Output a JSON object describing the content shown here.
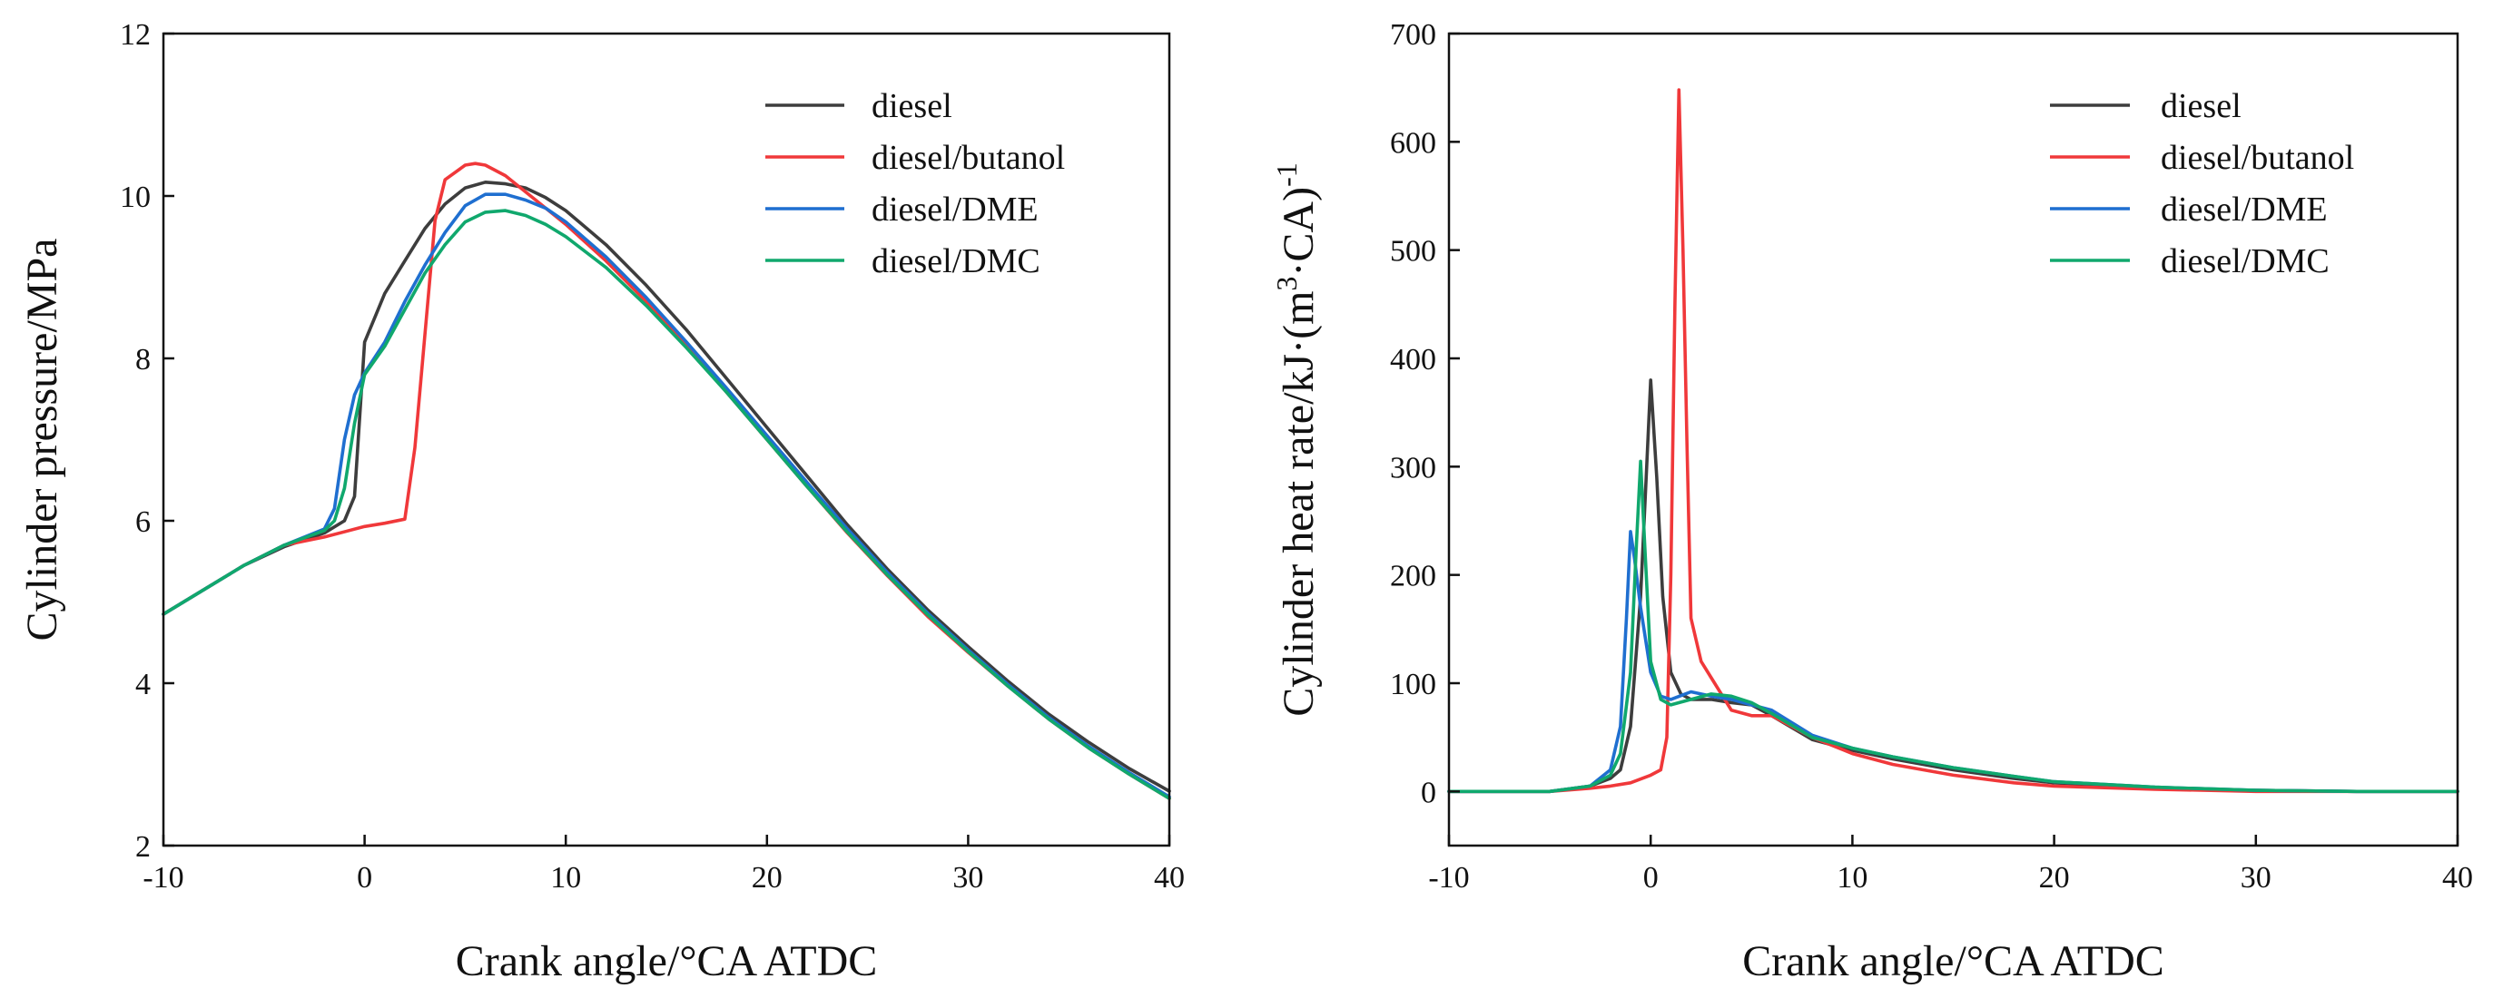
{
  "chart_data": [
    {
      "type": "line",
      "title": "",
      "xlabel": "Crank angle/°CA ATDC",
      "ylabel": "Cylinder pressure/MPa",
      "xlim": [
        -10,
        40
      ],
      "ylim": [
        2,
        12
      ],
      "xticks": [
        -10,
        0,
        10,
        20,
        30,
        40
      ],
      "yticks": [
        2,
        4,
        6,
        8,
        10,
        12
      ],
      "legend_position": "top-right",
      "series": [
        {
          "name": "diesel",
          "color": "#3d3d3d",
          "x": [
            -10,
            -8,
            -6,
            -4,
            -2,
            -1,
            -0.5,
            0,
            0.5,
            1,
            2,
            3,
            4,
            5,
            6,
            7,
            8,
            9,
            10,
            12,
            14,
            16,
            18,
            20,
            22,
            24,
            26,
            28,
            30,
            32,
            34,
            36,
            38,
            40
          ],
          "y": [
            4.85,
            5.15,
            5.45,
            5.68,
            5.85,
            6.0,
            6.3,
            8.2,
            8.5,
            8.8,
            9.2,
            9.6,
            9.9,
            10.1,
            10.17,
            10.15,
            10.1,
            9.98,
            9.82,
            9.4,
            8.9,
            8.35,
            7.75,
            7.15,
            6.55,
            5.95,
            5.4,
            4.9,
            4.45,
            4.02,
            3.62,
            3.27,
            2.95,
            2.67
          ]
        },
        {
          "name": "diesel/butanol",
          "color": "#f0383a",
          "x": [
            -10,
            -8,
            -6,
            -4,
            -2,
            0,
            1,
            2,
            2.5,
            3,
            3.5,
            4,
            5,
            5.5,
            6,
            7,
            8,
            9,
            10,
            12,
            14,
            16,
            18,
            20,
            22,
            24,
            26,
            28,
            30,
            32,
            34,
            36,
            38,
            40
          ],
          "y": [
            4.85,
            5.15,
            5.45,
            5.7,
            5.8,
            5.93,
            5.97,
            6.02,
            6.9,
            8.3,
            9.7,
            10.2,
            10.38,
            10.4,
            10.38,
            10.25,
            10.05,
            9.85,
            9.65,
            9.2,
            8.7,
            8.15,
            7.58,
            7.0,
            6.42,
            5.85,
            5.32,
            4.82,
            4.38,
            3.96,
            3.56,
            3.2,
            2.88,
            2.58
          ]
        },
        {
          "name": "diesel/DME",
          "color": "#1f6fd0",
          "x": [
            -10,
            -8,
            -6,
            -4,
            -2,
            -1.5,
            -1,
            -0.5,
            0,
            1,
            2,
            3,
            4,
            5,
            6,
            7,
            8,
            9,
            10,
            12,
            14,
            16,
            18,
            20,
            22,
            24,
            26,
            28,
            30,
            32,
            34,
            36,
            38,
            40
          ],
          "y": [
            4.85,
            5.15,
            5.45,
            5.7,
            5.9,
            6.15,
            7.0,
            7.55,
            7.82,
            8.2,
            8.7,
            9.15,
            9.55,
            9.88,
            10.02,
            10.02,
            9.95,
            9.85,
            9.68,
            9.25,
            8.75,
            8.2,
            7.63,
            7.05,
            6.47,
            5.9,
            5.36,
            4.86,
            4.41,
            3.98,
            3.58,
            3.22,
            2.9,
            2.6
          ]
        },
        {
          "name": "diesel/DMC",
          "color": "#10a86d",
          "x": [
            -10,
            -8,
            -6,
            -4,
            -2,
            -1.5,
            -1,
            -0.5,
            0,
            1,
            2,
            3,
            4,
            5,
            6,
            7,
            8,
            9,
            10,
            12,
            14,
            16,
            18,
            20,
            22,
            24,
            26,
            28,
            30,
            32,
            34,
            36,
            38,
            40
          ],
          "y": [
            4.85,
            5.15,
            5.45,
            5.7,
            5.88,
            6.0,
            6.4,
            7.2,
            7.8,
            8.15,
            8.6,
            9.05,
            9.4,
            9.68,
            9.8,
            9.82,
            9.76,
            9.65,
            9.5,
            9.12,
            8.65,
            8.13,
            7.58,
            7.0,
            6.42,
            5.86,
            5.33,
            4.84,
            4.39,
            3.96,
            3.56,
            3.2,
            2.88,
            2.58
          ]
        }
      ]
    },
    {
      "type": "line",
      "title": "",
      "xlabel": "Crank angle/°CA ATDC",
      "ylabel_main": "Cylinder heat rate/kJ·(m",
      "ylabel_sup1": "3",
      "ylabel_mid": "·CA)",
      "ylabel_sup2": "-1",
      "xlim": [
        -10,
        40
      ],
      "ylim": [
        -50,
        700
      ],
      "xticks": [
        -10,
        0,
        10,
        20,
        30,
        40
      ],
      "yticks": [
        0,
        100,
        200,
        300,
        400,
        500,
        600,
        700
      ],
      "legend_position": "top-right",
      "series": [
        {
          "name": "diesel",
          "color": "#3d3d3d",
          "x": [
            -10,
            -5,
            -3,
            -2,
            -1.5,
            -1,
            -0.5,
            -0.2,
            0,
            0.3,
            0.6,
            1,
            1.5,
            2,
            3,
            4,
            5,
            6,
            8,
            10,
            12,
            15,
            18,
            20,
            25,
            30,
            35,
            40
          ],
          "y": [
            0,
            0,
            5,
            12,
            20,
            60,
            180,
            300,
            380,
            290,
            180,
            110,
            90,
            85,
            85,
            82,
            80,
            70,
            48,
            38,
            30,
            20,
            12,
            8,
            3,
            1,
            0,
            0
          ]
        },
        {
          "name": "diesel/butanol",
          "color": "#f0383a",
          "x": [
            -10,
            -5,
            -3,
            -2,
            -1,
            0,
            0.5,
            0.8,
            1,
            1.2,
            1.4,
            1.6,
            1.8,
            2,
            2.5,
            3,
            4,
            5,
            6,
            8,
            10,
            12,
            15,
            18,
            20,
            25,
            30,
            35,
            40
          ],
          "y": [
            0,
            0,
            3,
            5,
            8,
            15,
            20,
            50,
            200,
            450,
            648,
            500,
            320,
            160,
            120,
            105,
            75,
            70,
            70,
            50,
            35,
            25,
            15,
            8,
            5,
            2,
            0,
            0,
            0
          ]
        },
        {
          "name": "diesel/DME",
          "color": "#1f6fd0",
          "x": [
            -10,
            -5,
            -3,
            -2,
            -1.5,
            -1.2,
            -1,
            -0.8,
            -0.5,
            0,
            0.5,
            1,
            2,
            3,
            4,
            5,
            6,
            8,
            10,
            12,
            15,
            18,
            20,
            25,
            30,
            35,
            40
          ],
          "y": [
            0,
            0,
            5,
            20,
            60,
            160,
            240,
            215,
            170,
            110,
            88,
            85,
            92,
            88,
            85,
            80,
            75,
            52,
            40,
            32,
            22,
            14,
            9,
            4,
            1,
            0,
            0
          ]
        },
        {
          "name": "diesel/DMC",
          "color": "#10a86d",
          "x": [
            -10,
            -5,
            -3,
            -2,
            -1.5,
            -1,
            -0.7,
            -0.5,
            -0.3,
            0,
            0.5,
            1,
            2,
            3,
            4,
            5,
            6,
            8,
            10,
            12,
            15,
            18,
            20,
            25,
            30,
            35,
            40
          ],
          "y": [
            0,
            0,
            5,
            15,
            35,
            110,
            230,
            305,
            230,
            120,
            85,
            80,
            85,
            90,
            88,
            82,
            72,
            50,
            40,
            32,
            22,
            14,
            9,
            4,
            1,
            0,
            0
          ]
        }
      ]
    }
  ]
}
